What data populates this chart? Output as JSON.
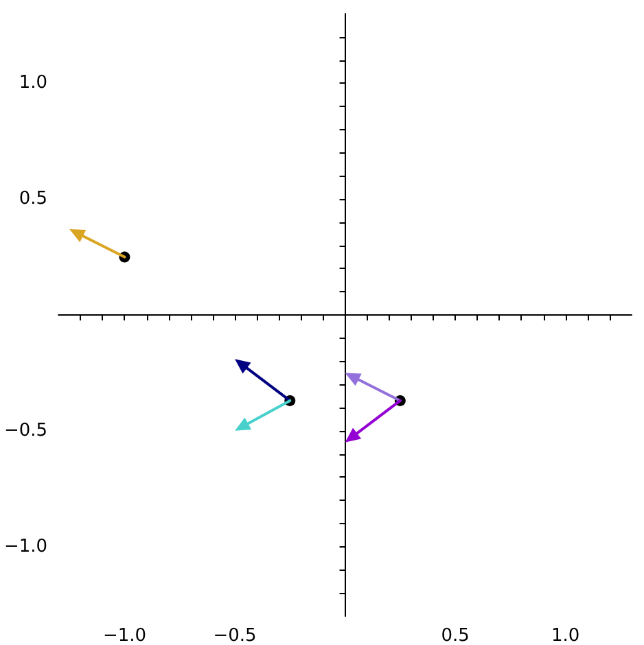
{
  "chart_data": {
    "type": "scatter",
    "xlim": [
      -1.3,
      1.3
    ],
    "ylim": [
      -1.3,
      1.3
    ],
    "xticks": [
      {
        "value": -1.2,
        "label": null
      },
      {
        "value": -1.1,
        "label": null
      },
      {
        "value": -1.0,
        "label": "−1.0"
      },
      {
        "value": -0.9,
        "label": null
      },
      {
        "value": -0.8,
        "label": null
      },
      {
        "value": -0.7,
        "label": null
      },
      {
        "value": -0.6,
        "label": null
      },
      {
        "value": -0.5,
        "label": "−0.5"
      },
      {
        "value": -0.4,
        "label": null
      },
      {
        "value": -0.3,
        "label": null
      },
      {
        "value": -0.2,
        "label": null
      },
      {
        "value": -0.1,
        "label": null
      },
      {
        "value": 0.1,
        "label": null
      },
      {
        "value": 0.2,
        "label": null
      },
      {
        "value": 0.3,
        "label": null
      },
      {
        "value": 0.4,
        "label": null
      },
      {
        "value": 0.5,
        "label": "0.5"
      },
      {
        "value": 0.6,
        "label": null
      },
      {
        "value": 0.7,
        "label": null
      },
      {
        "value": 0.8,
        "label": null
      },
      {
        "value": 0.9,
        "label": null
      },
      {
        "value": 1.0,
        "label": "1.0"
      },
      {
        "value": 1.1,
        "label": null
      },
      {
        "value": 1.2,
        "label": null
      }
    ],
    "yticks": [
      {
        "value": -1.2,
        "label": null
      },
      {
        "value": -1.1,
        "label": null
      },
      {
        "value": -1.0,
        "label": "−1.0"
      },
      {
        "value": -0.9,
        "label": null
      },
      {
        "value": -0.8,
        "label": null
      },
      {
        "value": -0.7,
        "label": null
      },
      {
        "value": -0.6,
        "label": null
      },
      {
        "value": -0.5,
        "label": "−0.5"
      },
      {
        "value": -0.4,
        "label": null
      },
      {
        "value": -0.3,
        "label": null
      },
      {
        "value": -0.2,
        "label": null
      },
      {
        "value": -0.1,
        "label": null
      },
      {
        "value": 0.1,
        "label": null
      },
      {
        "value": 0.2,
        "label": null
      },
      {
        "value": 0.3,
        "label": null
      },
      {
        "value": 0.4,
        "label": null
      },
      {
        "value": 0.5,
        "label": "0.5"
      },
      {
        "value": 0.6,
        "label": null
      },
      {
        "value": 0.7,
        "label": null
      },
      {
        "value": 0.8,
        "label": null
      },
      {
        "value": 0.9,
        "label": null
      },
      {
        "value": 1.0,
        "label": "1.0"
      },
      {
        "value": 1.1,
        "label": null
      },
      {
        "value": 1.2,
        "label": null
      }
    ],
    "series": [
      {
        "color": "#000000",
        "x": [
          -1.0,
          -0.25,
          0.25
        ],
        "values": [
          0.25,
          -0.37,
          -0.37
        ],
        "marker": "circle"
      }
    ],
    "grid": false
  }
}
